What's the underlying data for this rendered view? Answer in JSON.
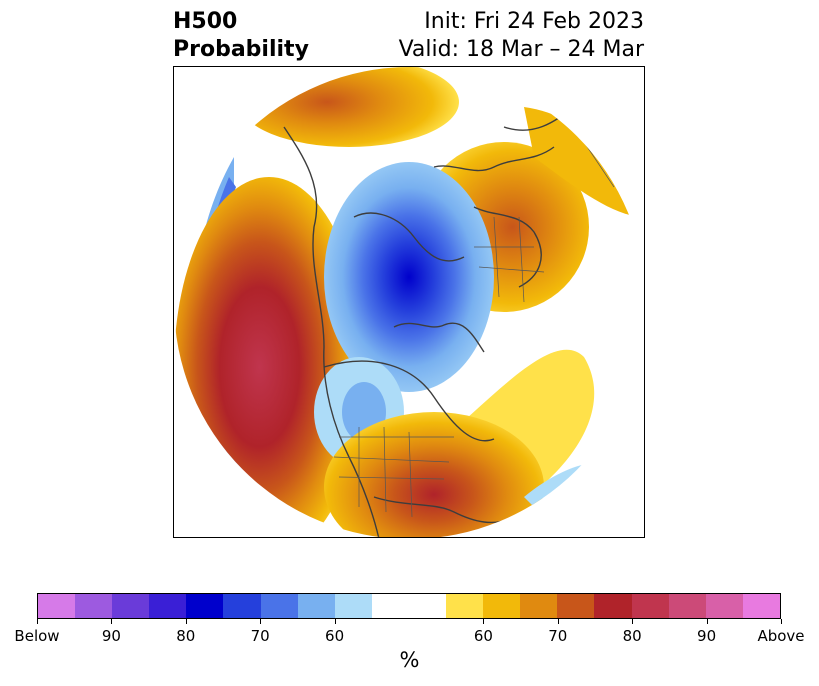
{
  "title": {
    "left_line1": "H500",
    "left_line2": "Probability",
    "right_line1": "Init: Fri 24 Feb 2023",
    "right_line2": "Valid: 18 Mar – 24 Mar"
  },
  "colorbar": {
    "below_colors": [
      "#d67ae8",
      "#9d5ae0",
      "#6a3bd9",
      "#3a1fd6",
      "#0000cc",
      "#2540dc",
      "#4a73e8",
      "#78b0f0",
      "#addcf8"
    ],
    "neutral_color": "#ffffff",
    "above_colors": [
      "#ffe14a",
      "#f2b90a",
      "#e08a10",
      "#c8561a",
      "#b0232a",
      "#c0354e",
      "#cc4a78",
      "#d860a8",
      "#e87ae0"
    ],
    "tick_labels": [
      "Below",
      "90",
      "80",
      "70",
      "60",
      "60",
      "70",
      "80",
      "90",
      "Above"
    ],
    "unit_label": "%"
  }
}
